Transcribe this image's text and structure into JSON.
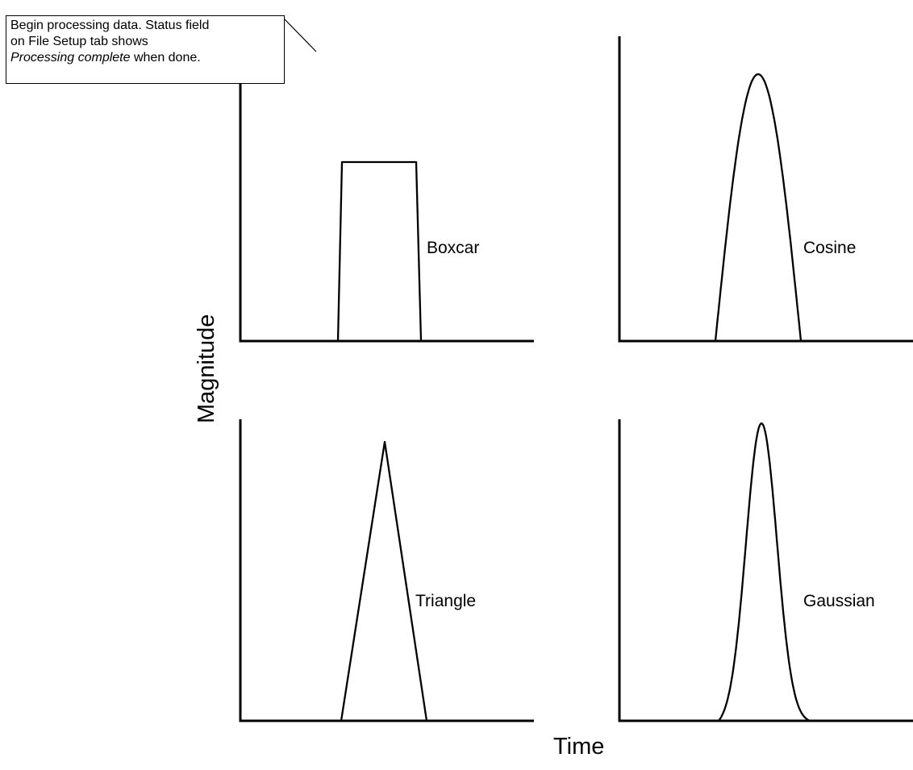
{
  "callout": {
    "line1": "Begin processing data. Status field",
    "line2": "on File Setup tab shows",
    "line3_italic": "Processing complete",
    "line3_rest": " when done."
  },
  "axes": {
    "y_label": "Magnitude",
    "x_label": "Time"
  },
  "panels": [
    {
      "label": "Boxcar",
      "shape": "boxcar"
    },
    {
      "label": "Cosine",
      "shape": "cosine"
    },
    {
      "label": "Triangle",
      "shape": "triangle"
    },
    {
      "label": "Gaussian",
      "shape": "gaussian"
    }
  ]
}
